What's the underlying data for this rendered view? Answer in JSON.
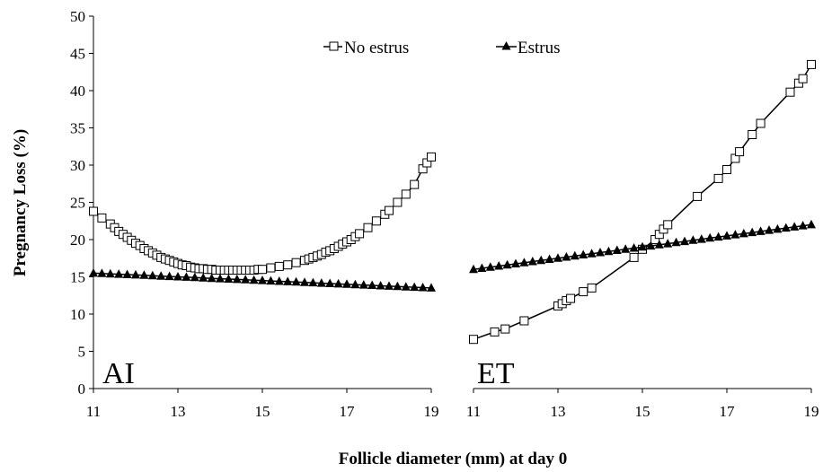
{
  "chart_data": {
    "type": "line",
    "ylabel": "Pregnancy Loss (%)",
    "xlabel": "Follicle diameter (mm) at day 0",
    "ylim": [
      0,
      50
    ],
    "yticks": [
      "0",
      "5",
      "10",
      "15",
      "20",
      "25",
      "30",
      "35",
      "40",
      "45",
      "50"
    ],
    "legend": {
      "placement": "top-center",
      "entries": [
        {
          "name": "No estrus",
          "marker": "open-square"
        },
        {
          "name": "Estrus",
          "marker": "filled-triangle"
        }
      ]
    },
    "grid": false,
    "panels": [
      {
        "label": "AI",
        "xlim": [
          11,
          19
        ],
        "xticks": [
          "11",
          "13",
          "15",
          "17",
          "19"
        ],
        "series": [
          {
            "name": "No estrus",
            "x": [
              11.0,
              11.2,
              11.4,
              11.5,
              11.6,
              11.7,
              11.8,
              11.9,
              12.0,
              12.1,
              12.2,
              12.3,
              12.4,
              12.5,
              12.6,
              12.7,
              12.8,
              12.9,
              13.0,
              13.1,
              13.2,
              13.3,
              13.4,
              13.5,
              13.6,
              13.7,
              13.8,
              13.9,
              14.0,
              14.1,
              14.2,
              14.3,
              14.4,
              14.5,
              14.6,
              14.7,
              14.8,
              14.9,
              15.0,
              15.2,
              15.4,
              15.6,
              15.8,
              16.0,
              16.1,
              16.2,
              16.3,
              16.4,
              16.5,
              16.6,
              16.7,
              16.8,
              16.9,
              17.0,
              17.1,
              17.2,
              17.3,
              17.5,
              17.7,
              17.9,
              18.0,
              18.2,
              18.4,
              18.6,
              18.8,
              18.9,
              19.0
            ],
            "y": [
              23.8,
              22.9,
              22.1,
              21.6,
              21.1,
              20.7,
              20.3,
              19.9,
              19.5,
              19.2,
              18.8,
              18.5,
              18.2,
              17.9,
              17.6,
              17.4,
              17.2,
              17.0,
              16.8,
              16.6,
              16.5,
              16.3,
              16.2,
              16.1,
              16.1,
              16.0,
              16.0,
              15.9,
              15.9,
              15.9,
              15.9,
              15.9,
              15.9,
              15.9,
              15.9,
              15.9,
              15.9,
              16.0,
              16.0,
              16.2,
              16.4,
              16.6,
              16.9,
              17.2,
              17.4,
              17.6,
              17.8,
              18.0,
              18.3,
              18.5,
              18.8,
              19.1,
              19.4,
              19.7,
              20.0,
              20.4,
              20.8,
              21.6,
              22.5,
              23.4,
              23.9,
              25.0,
              26.1,
              27.4,
              29.5,
              30.3,
              31.1
            ]
          },
          {
            "name": "Estrus",
            "x": [
              11.0,
              11.2,
              11.4,
              11.6,
              11.8,
              12.0,
              12.2,
              12.4,
              12.6,
              12.8,
              13.0,
              13.2,
              13.4,
              13.6,
              13.8,
              14.0,
              14.2,
              14.4,
              14.6,
              14.8,
              15.0,
              15.2,
              15.4,
              15.6,
              15.8,
              16.0,
              16.2,
              16.4,
              16.6,
              16.8,
              17.0,
              17.2,
              17.4,
              17.6,
              17.8,
              18.0,
              18.2,
              18.4,
              18.6,
              18.8,
              19.0
            ],
            "y": [
              15.5,
              15.45,
              15.4,
              15.35,
              15.3,
              15.25,
              15.2,
              15.15,
              15.1,
              15.05,
              15.0,
              14.95,
              14.9,
              14.85,
              14.8,
              14.75,
              14.7,
              14.65,
              14.6,
              14.55,
              14.5,
              14.45,
              14.4,
              14.35,
              14.3,
              14.25,
              14.2,
              14.15,
              14.1,
              14.05,
              14.0,
              13.95,
              13.9,
              13.85,
              13.8,
              13.75,
              13.7,
              13.65,
              13.6,
              13.55,
              13.5
            ]
          }
        ]
      },
      {
        "label": "ET",
        "xlim": [
          11,
          19
        ],
        "xticks": [
          "11",
          "13",
          "15",
          "17",
          "19"
        ],
        "series": [
          {
            "name": "No estrus",
            "x": [
              11.0,
              11.5,
              11.75,
              12.2,
              13.0,
              13.1,
              13.2,
              13.3,
              13.6,
              13.8,
              14.8,
              15.0,
              15.3,
              15.4,
              15.5,
              15.6,
              16.3,
              16.8,
              17.0,
              17.2,
              17.3,
              17.6,
              17.8,
              18.5,
              18.7,
              18.8,
              19.0
            ],
            "y": [
              6.6,
              7.6,
              8.0,
              9.1,
              11.1,
              11.4,
              11.8,
              12.1,
              13.0,
              13.5,
              17.6,
              18.7,
              20.0,
              20.7,
              21.4,
              22.0,
              25.8,
              28.2,
              29.4,
              30.9,
              31.8,
              34.1,
              35.6,
              39.8,
              41.0,
              41.6,
              43.5
            ]
          },
          {
            "name": "Estrus",
            "x": [
              11.0,
              11.2,
              11.4,
              11.6,
              11.8,
              12.0,
              12.2,
              12.4,
              12.6,
              12.8,
              13.0,
              13.2,
              13.4,
              13.6,
              13.8,
              14.0,
              14.2,
              14.4,
              14.6,
              14.8,
              15.0,
              15.2,
              15.4,
              15.6,
              15.8,
              16.0,
              16.2,
              16.4,
              16.6,
              16.8,
              17.0,
              17.2,
              17.4,
              17.6,
              17.8,
              18.0,
              18.2,
              18.4,
              18.6,
              18.8,
              19.0
            ],
            "y": [
              16.0,
              16.15,
              16.3,
              16.45,
              16.6,
              16.75,
              16.9,
              17.05,
              17.2,
              17.35,
              17.5,
              17.65,
              17.8,
              17.95,
              18.1,
              18.25,
              18.4,
              18.55,
              18.7,
              18.85,
              19.0,
              19.15,
              19.3,
              19.45,
              19.6,
              19.75,
              19.9,
              20.05,
              20.2,
              20.35,
              20.5,
              20.65,
              20.8,
              20.95,
              21.1,
              21.25,
              21.4,
              21.55,
              21.7,
              21.85,
              22.0
            ]
          }
        ]
      }
    ]
  }
}
